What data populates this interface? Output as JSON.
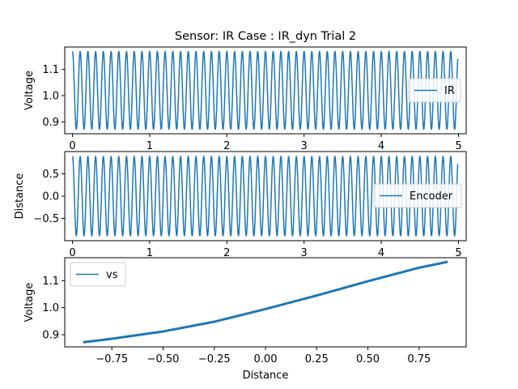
{
  "chart_data": [
    {
      "type": "line",
      "title": "Sensor: IR Case : IR_dyn Trial 2",
      "xlabel": "",
      "ylabel": "Voltage",
      "xlim": [
        -0.1,
        5.1
      ],
      "ylim": [
        0.855,
        1.185
      ],
      "xticks": [
        0,
        1,
        2,
        3,
        4,
        5
      ],
      "xtick_labels": [
        "0",
        "1",
        "2",
        "3",
        "4",
        "5"
      ],
      "yticks": [
        0.9,
        1.0,
        1.1
      ],
      "ytick_labels": [
        "0.9",
        "1.0",
        "1.1"
      ],
      "grid": false,
      "legend": {
        "placement": "center-right",
        "entries": [
          "IR"
        ]
      },
      "series": [
        {
          "name": "IR",
          "color": "#1f77b4",
          "x_start": 0.0,
          "x_end": 4.99,
          "frequency": 10,
          "phase": 1.5708,
          "offset_from": "sine",
          "y_min": 0.872,
          "y_max": 1.168
        }
      ]
    },
    {
      "type": "line",
      "title": "",
      "xlabel": "",
      "ylabel": "Distance",
      "xlim": [
        -0.1,
        5.1
      ],
      "ylim": [
        -1.0,
        1.0
      ],
      "xticks": [
        0,
        1,
        2,
        3,
        4,
        5
      ],
      "xtick_labels": [
        "0",
        "1",
        "2",
        "3",
        "4",
        "5"
      ],
      "yticks": [
        -0.5,
        0.0,
        0.5
      ],
      "ytick_labels": [
        "−0.5",
        "0.0",
        "0.5"
      ],
      "grid": false,
      "legend": {
        "placement": "center-right",
        "entries": [
          "Encoder"
        ]
      },
      "series": [
        {
          "name": "Encoder",
          "color": "#1f77b4",
          "x_start": 0.0,
          "x_end": 4.99,
          "frequency": 10,
          "phase": 1.5708,
          "amplitude": 0.89
        }
      ]
    },
    {
      "type": "line",
      "title": "",
      "xlabel": "Distance",
      "ylabel": "Voltage",
      "xlim": [
        -0.98,
        0.98
      ],
      "ylim": [
        0.855,
        1.185
      ],
      "xticks": [
        -0.75,
        -0.5,
        -0.25,
        0.0,
        0.25,
        0.5,
        0.75
      ],
      "xtick_labels": [
        "−0.75",
        "−0.50",
        "−0.25",
        "0.00",
        "0.25",
        "0.50",
        "0.75"
      ],
      "yticks": [
        0.9,
        1.0,
        1.1
      ],
      "ytick_labels": [
        "0.9",
        "1.0",
        "1.1"
      ],
      "grid": false,
      "legend": {
        "placement": "upper-left",
        "entries": [
          "vs"
        ]
      },
      "series": [
        {
          "name": "vs",
          "color": "#1f77b4",
          "x": [
            -0.89,
            -0.75,
            -0.5,
            -0.25,
            0.0,
            0.25,
            0.5,
            0.75,
            0.89
          ],
          "y": [
            0.872,
            0.885,
            0.912,
            0.948,
            0.995,
            1.045,
            1.098,
            1.148,
            1.17
          ]
        }
      ]
    }
  ]
}
